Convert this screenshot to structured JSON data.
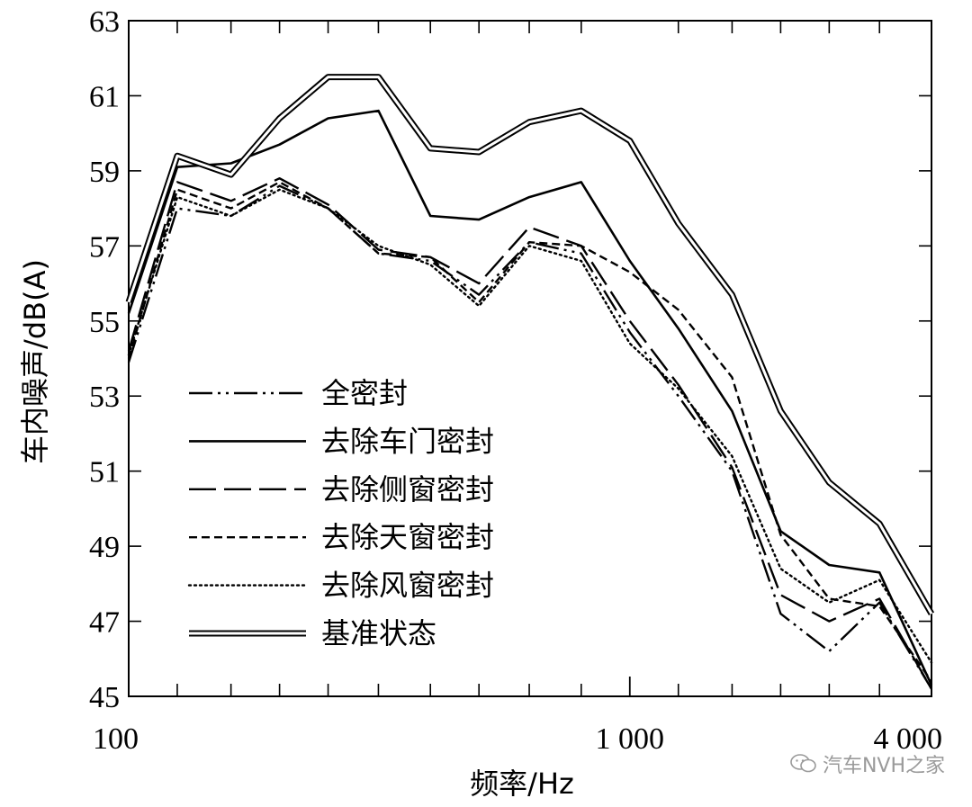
{
  "chart_data": {
    "type": "line",
    "xlabel": "频率/Hz",
    "ylabel": "车内噪声/dB(A)",
    "x_scale": "log",
    "xlim": [
      100,
      4000
    ],
    "ylim": [
      45,
      63
    ],
    "x_tick_labels": [
      {
        "value": 100,
        "label": "100"
      },
      {
        "value": 1000,
        "label": "1 000"
      },
      {
        "value": 4000,
        "label": "4 000"
      }
    ],
    "x_minor_ticks": [
      125,
      160,
      200,
      250,
      315,
      400,
      500,
      630,
      800,
      1250,
      1600,
      2000,
      2500,
      3150
    ],
    "y_ticks": [
      45,
      47,
      49,
      51,
      53,
      55,
      57,
      59,
      61,
      63
    ],
    "x": [
      100,
      125,
      160,
      200,
      250,
      315,
      400,
      500,
      630,
      800,
      1000,
      1250,
      1600,
      2000,
      2500,
      3150,
      4000
    ],
    "series": [
      {
        "name": "全密封",
        "style": "dashdot",
        "values": [
          53.9,
          58.0,
          57.8,
          58.6,
          58.0,
          56.8,
          56.6,
          55.7,
          57.1,
          56.8,
          54.7,
          53.0,
          51.0,
          47.2,
          46.2,
          47.5,
          45.2
        ]
      },
      {
        "name": "去除车门密封",
        "style": "solid",
        "values": [
          55.2,
          59.1,
          59.2,
          59.7,
          60.4,
          60.6,
          57.8,
          57.7,
          58.3,
          58.7,
          56.6,
          54.8,
          52.6,
          49.4,
          48.5,
          48.3,
          45.3
        ]
      },
      {
        "name": "去除侧窗密封",
        "style": "longdash",
        "values": [
          54.2,
          58.7,
          58.2,
          58.8,
          58.1,
          56.9,
          56.7,
          56.0,
          57.5,
          57.0,
          55.0,
          53.3,
          51.1,
          47.7,
          47.0,
          47.6,
          45.2
        ]
      },
      {
        "name": "去除天窗密封",
        "style": "shortdash",
        "values": [
          54.0,
          58.5,
          58.0,
          58.7,
          58.0,
          56.8,
          56.7,
          55.5,
          57.1,
          57.0,
          56.3,
          55.3,
          53.5,
          49.3,
          47.6,
          47.4,
          45.4
        ]
      },
      {
        "name": "去除风窗密封",
        "style": "dotted",
        "values": [
          54.1,
          58.3,
          57.8,
          58.5,
          58.0,
          57.0,
          56.5,
          55.4,
          57.0,
          56.6,
          54.4,
          53.2,
          51.4,
          48.4,
          47.5,
          48.1,
          45.9
        ]
      },
      {
        "name": "基准状态",
        "style": "double",
        "values": [
          55.5,
          59.4,
          58.9,
          60.4,
          61.5,
          61.5,
          59.6,
          59.5,
          60.3,
          60.6,
          59.8,
          57.6,
          55.7,
          52.6,
          50.7,
          49.6,
          47.2
        ]
      }
    ],
    "legend_position": "bottom-left (inside)",
    "grid": false
  },
  "watermark": {
    "text": "汽车NVH之家",
    "icon": "wechat-icon"
  }
}
